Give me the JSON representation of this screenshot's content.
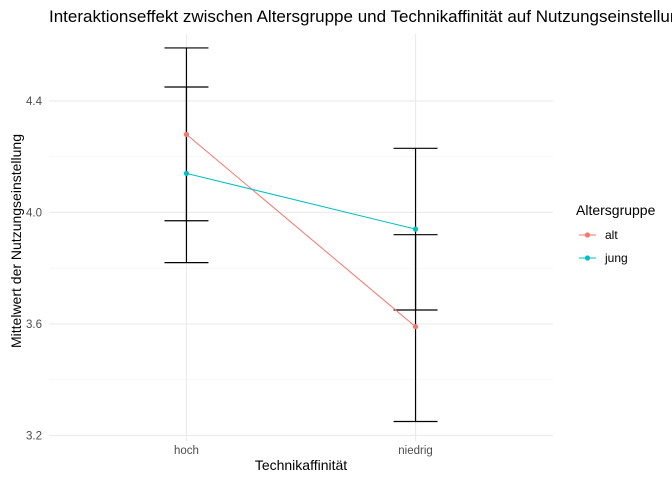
{
  "chart_data": {
    "type": "line",
    "title": "Interaktionseffekt zwischen Altersgruppe und Technikaffinität auf Nutzungseinstellung",
    "xlabel": "Technikaffinität",
    "ylabel": "Mittelwert der Nutzungseinstellung",
    "categories": [
      "hoch",
      "niedrig"
    ],
    "ylim": [
      3.18,
      4.64
    ],
    "yticks": [
      3.2,
      3.6,
      4.0,
      4.4
    ],
    "ytick_labels": [
      "3.2",
      "3.6",
      "4.0",
      "4.4"
    ],
    "grid": true,
    "legend": {
      "title": "Altersgruppe",
      "position": "right"
    },
    "series": [
      {
        "name": "alt",
        "color": "#F8766D",
        "values": [
          4.28,
          3.59
        ],
        "error_lower": [
          3.97,
          3.25
        ],
        "error_upper": [
          4.59,
          3.92
        ]
      },
      {
        "name": "jung",
        "color": "#00BFC4",
        "values": [
          4.14,
          3.94
        ],
        "error_lower": [
          3.82,
          3.65
        ],
        "error_upper": [
          4.45,
          4.23
        ]
      }
    ]
  }
}
